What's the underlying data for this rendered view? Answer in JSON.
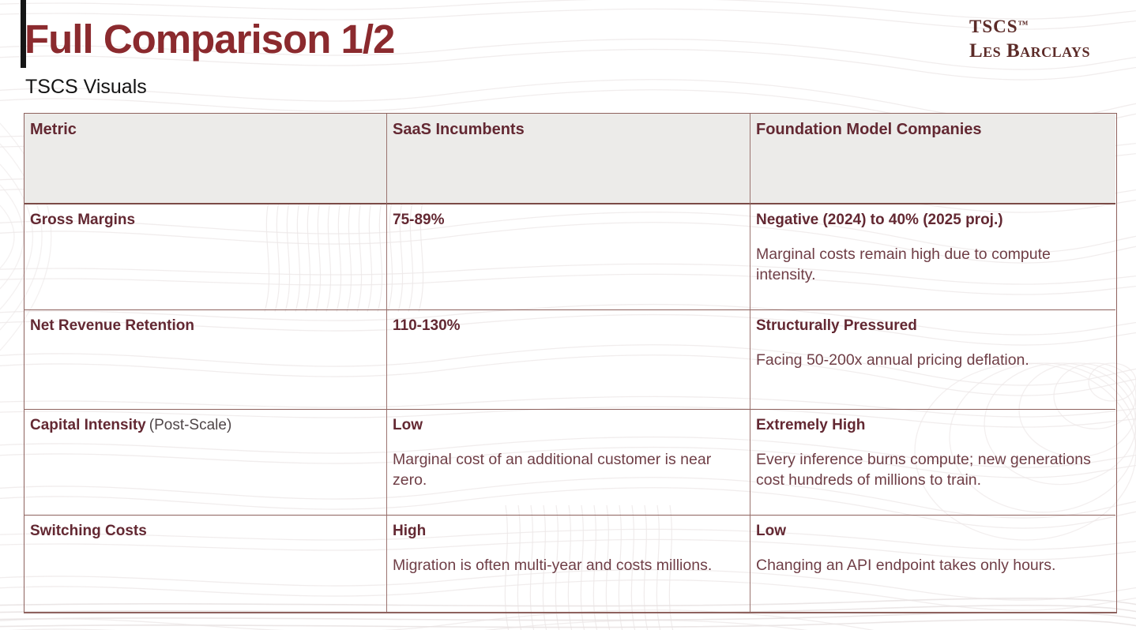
{
  "slide": {
    "title": "Full Comparison 1/2",
    "subtitle": "TSCS Visuals"
  },
  "logo": {
    "brand": "TSCS",
    "tm": "™",
    "subbrand": "Les Barclays"
  },
  "colors": {
    "accent_maroon": "#8B2A2E",
    "table_heading_text": "#632832",
    "table_body_text": "#6F3E46",
    "table_border": "#8E625E",
    "header_row_bg": "#ECEBE9",
    "accent_bar_black": "#161616"
  },
  "table": {
    "headers": [
      "Metric",
      "SaaS Incumbents",
      "Foundation Model Companies"
    ],
    "rows": [
      {
        "metric": "Gross Margins",
        "metric_note": "",
        "saas_headline": "75-89%",
        "saas_detail": "",
        "fm_headline": "Negative (2024) to 40% (2025 proj.)",
        "fm_detail": "Marginal costs remain high due to compute intensity."
      },
      {
        "metric": "Net Revenue Retention",
        "metric_note": "",
        "saas_headline": "110-130%",
        "saas_detail": "",
        "fm_headline": "Structurally Pressured",
        "fm_detail": "Facing 50-200x annual pricing deflation."
      },
      {
        "metric": "Capital Intensity",
        "metric_note": "(Post-Scale)",
        "saas_headline": "Low",
        "saas_detail": "Marginal cost of an additional customer is near zero.",
        "fm_headline": "Extremely High",
        "fm_detail": "Every inference burns compute; new generations cost hundreds of millions to train."
      },
      {
        "metric": "Switching Costs",
        "metric_note": "",
        "saas_headline": "High",
        "saas_detail": "Migration is often multi-year and costs millions.",
        "fm_headline": "Low",
        "fm_detail": "Changing an API endpoint takes only hours."
      }
    ]
  }
}
